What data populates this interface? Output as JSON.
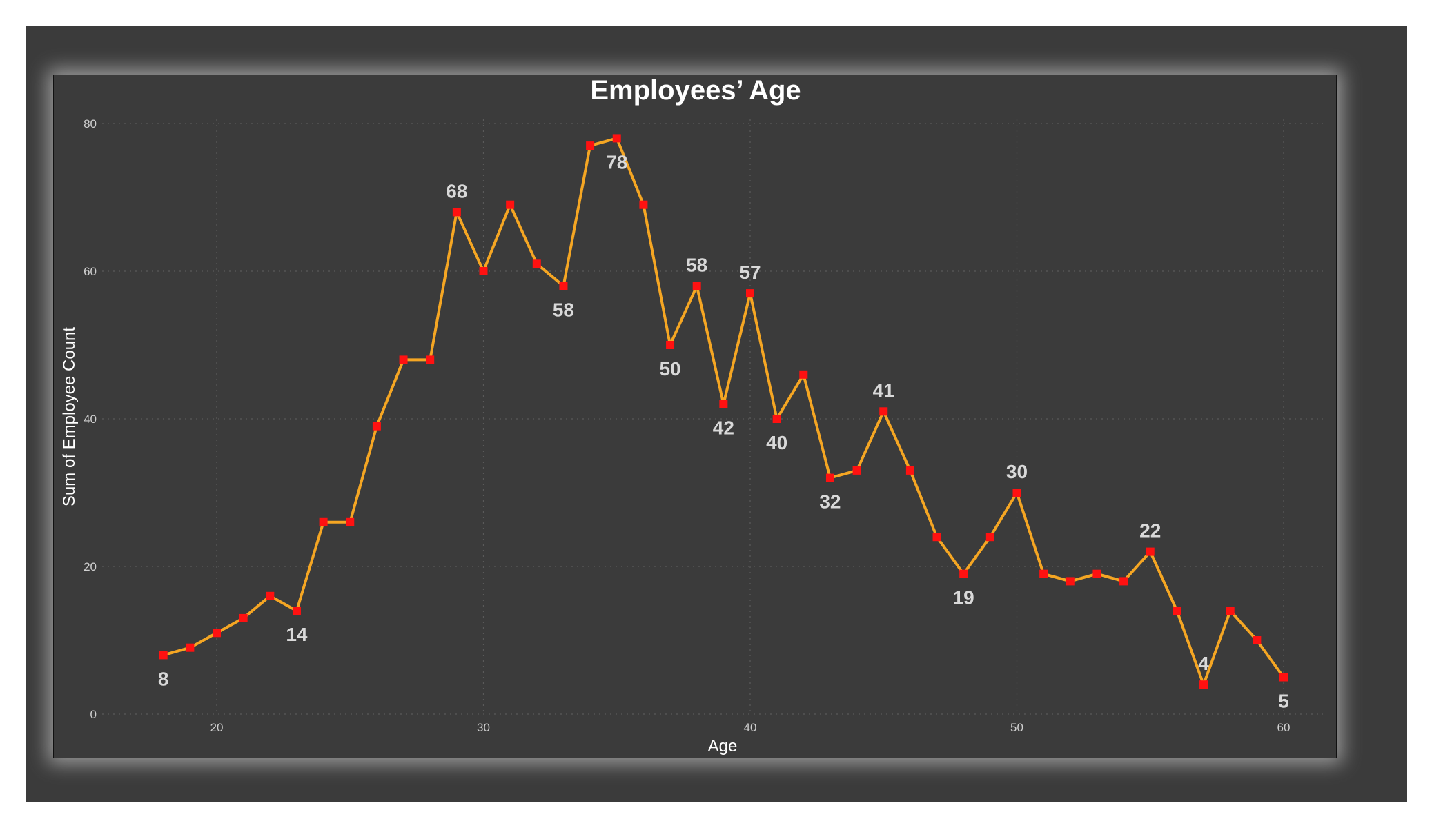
{
  "chart_data": {
    "type": "line",
    "title": "Employees’ Age",
    "xlabel": "Age",
    "ylabel": "Sum of Employee Count",
    "xlim": [
      13,
      60
    ],
    "ylim": [
      0,
      80
    ],
    "xticks": [
      20,
      30,
      40,
      50,
      60
    ],
    "yticks": [
      0,
      20,
      40,
      60,
      80
    ],
    "grid": true,
    "colors": {
      "line": "#f5a623",
      "marker": "#ff1111"
    },
    "x": [
      18,
      19,
      20,
      21,
      22,
      23,
      24,
      25,
      26,
      27,
      28,
      29,
      30,
      31,
      32,
      33,
      34,
      35,
      36,
      37,
      38,
      39,
      40,
      41,
      42,
      43,
      44,
      45,
      46,
      47,
      48,
      49,
      50,
      51,
      52,
      53,
      54,
      55,
      56,
      57,
      58,
      59,
      60
    ],
    "values": [
      8,
      9,
      11,
      13,
      16,
      14,
      26,
      26,
      39,
      48,
      48,
      68,
      60,
      69,
      61,
      58,
      77,
      78,
      69,
      50,
      58,
      42,
      57,
      40,
      46,
      32,
      33,
      41,
      33,
      24,
      19,
      24,
      30,
      19,
      18,
      19,
      18,
      22,
      14,
      4,
      14,
      10,
      5
    ],
    "data_labels": [
      {
        "x": 18,
        "value": 8,
        "text": "8",
        "position": "below"
      },
      {
        "x": 23,
        "value": 14,
        "text": "14",
        "position": "below"
      },
      {
        "x": 29,
        "value": 68,
        "text": "68",
        "position": "above"
      },
      {
        "x": 33,
        "value": 58,
        "text": "58",
        "position": "below"
      },
      {
        "x": 35,
        "value": 78,
        "text": "78",
        "position": "below"
      },
      {
        "x": 37,
        "value": 50,
        "text": "50",
        "position": "below"
      },
      {
        "x": 38,
        "value": 58,
        "text": "58",
        "position": "above"
      },
      {
        "x": 39,
        "value": 42,
        "text": "42",
        "position": "below"
      },
      {
        "x": 40,
        "value": 57,
        "text": "57",
        "position": "above"
      },
      {
        "x": 41,
        "value": 40,
        "text": "40",
        "position": "below"
      },
      {
        "x": 43,
        "value": 32,
        "text": "32",
        "position": "below"
      },
      {
        "x": 45,
        "value": 41,
        "text": "41",
        "position": "above"
      },
      {
        "x": 48,
        "value": 19,
        "text": "19",
        "position": "below"
      },
      {
        "x": 50,
        "value": 30,
        "text": "30",
        "position": "above"
      },
      {
        "x": 55,
        "value": 22,
        "text": "22",
        "position": "above"
      },
      {
        "x": 57,
        "value": 4,
        "text": "4",
        "position": "above"
      },
      {
        "x": 60,
        "value": 5,
        "text": "5",
        "position": "below"
      }
    ]
  }
}
